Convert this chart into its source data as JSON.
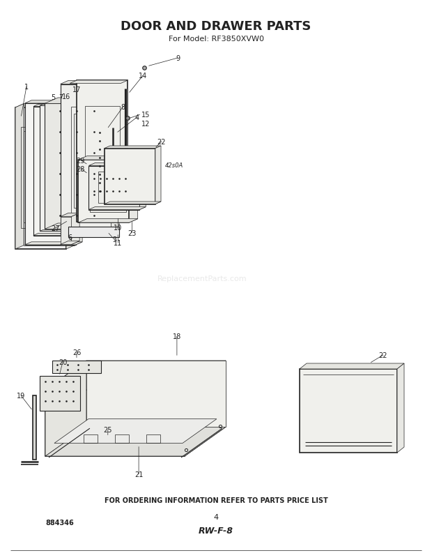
{
  "title": "DOOR AND DRAWER PARTS",
  "subtitle": "For Model: RF3850XVW0",
  "bottom_text": "FOR ORDERING INFORMATION REFER TO PARTS PRICE LIST",
  "page_number": "4",
  "diagram_code": "RW-F-8",
  "part_number": "884346",
  "diagram_label": "42s0A",
  "bg": "#f5f5f0",
  "lc": "#222222",
  "watermark": "ReplacementParts.com"
}
